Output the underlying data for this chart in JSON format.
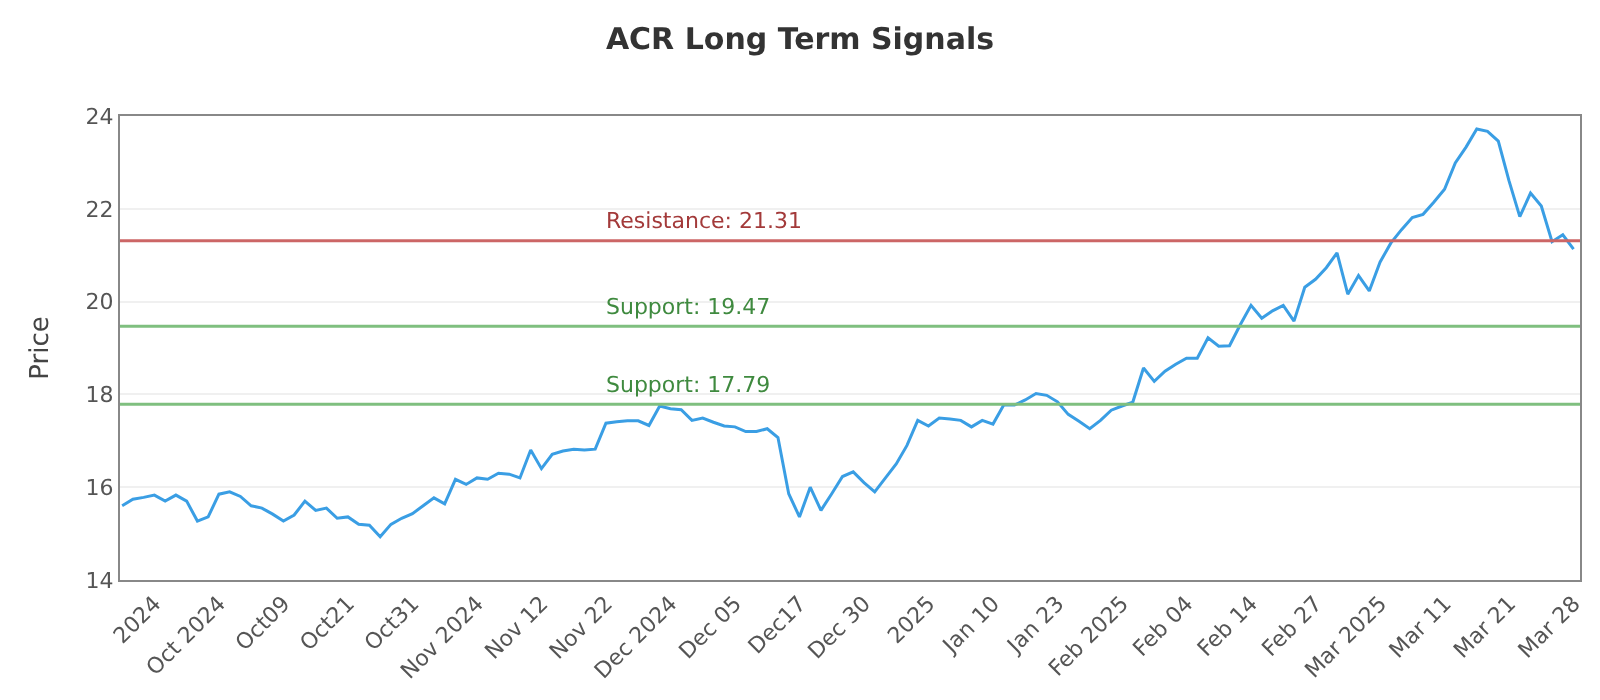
{
  "chart_data": {
    "type": "line",
    "title": "ACR Long Term Signals",
    "ylabel": "Price",
    "categories": [
      null,
      null,
      null,
      "2024",
      null,
      null,
      null,
      null,
      null,
      "Oct 2024",
      null,
      null,
      null,
      null,
      null,
      "Oct09",
      null,
      null,
      null,
      null,
      null,
      "Oct21",
      null,
      null,
      null,
      null,
      null,
      "Oct31",
      null,
      null,
      null,
      null,
      null,
      "Nov 2024",
      null,
      null,
      null,
      null,
      null,
      "Nov 12",
      null,
      null,
      null,
      null,
      null,
      "Nov 22",
      null,
      null,
      null,
      null,
      null,
      "Dec 2024",
      null,
      null,
      null,
      null,
      null,
      "Dec 05",
      null,
      null,
      null,
      null,
      null,
      "Dec17",
      null,
      null,
      null,
      null,
      null,
      "Dec 30",
      null,
      null,
      null,
      null,
      null,
      "2025",
      null,
      null,
      null,
      null,
      null,
      "Jan 10",
      null,
      null,
      null,
      null,
      null,
      "Jan 23",
      null,
      null,
      null,
      null,
      null,
      "Feb 2025",
      null,
      null,
      null,
      null,
      null,
      "Feb 04",
      null,
      null,
      null,
      null,
      null,
      "Feb 14",
      null,
      null,
      null,
      null,
      null,
      "Feb 27",
      null,
      null,
      null,
      null,
      null,
      "Mar 2025",
      null,
      null,
      null,
      null,
      null,
      "Mar 11",
      null,
      null,
      null,
      null,
      null,
      "Mar 21",
      null,
      null,
      null,
      null,
      null,
      "Mar 28"
    ],
    "series": [
      {
        "color": "#3a9ee4",
        "values": [
          15.6,
          15.74,
          15.78,
          15.83,
          15.7,
          15.83,
          15.7,
          15.27,
          15.36,
          15.85,
          15.9,
          15.8,
          15.6,
          15.55,
          15.42,
          15.27,
          15.4,
          15.7,
          15.5,
          15.55,
          15.33,
          15.36,
          15.2,
          15.18,
          14.93,
          15.2,
          15.33,
          15.43,
          15.6,
          15.77,
          15.64,
          16.17,
          16.06,
          16.2,
          16.17,
          16.3,
          16.28,
          16.2,
          16.8,
          16.4,
          16.71,
          16.78,
          16.82,
          16.8,
          16.82,
          17.38,
          17.41,
          17.43,
          17.43,
          17.33,
          17.75,
          17.69,
          17.67,
          17.44,
          17.49,
          17.4,
          17.32,
          17.3,
          17.2,
          17.2,
          17.26,
          17.07,
          15.86,
          15.36,
          16.0,
          15.5,
          15.86,
          16.23,
          16.33,
          16.1,
          15.9,
          16.2,
          16.5,
          16.9,
          17.44,
          17.32,
          17.49,
          17.47,
          17.44,
          17.3,
          17.44,
          17.36,
          17.77,
          17.77,
          17.88,
          18.02,
          17.98,
          17.84,
          17.57,
          17.42,
          17.26,
          17.44,
          17.66,
          17.75,
          17.83,
          18.57,
          18.28,
          18.5,
          18.65,
          18.78,
          18.78,
          19.22,
          19.04,
          19.05,
          19.5,
          19.92,
          19.64,
          19.8,
          19.92,
          19.58,
          20.31,
          20.48,
          20.73,
          21.05,
          20.16,
          20.56,
          20.23,
          20.85,
          21.26,
          21.55,
          21.81,
          21.88,
          22.14,
          22.42,
          22.99,
          23.33,
          23.72,
          23.67,
          23.46,
          22.6,
          21.83,
          22.34,
          22.06,
          21.29,
          21.44,
          21.13
        ]
      }
    ],
    "ylim": [
      14,
      24
    ],
    "yticks": [
      14,
      16,
      18,
      20,
      22,
      24
    ],
    "grid": "y",
    "marker": "none",
    "line_style": "solid",
    "ref_lines": [
      {
        "axis": "y",
        "value": 21.31,
        "label": "Resistance: 21.31",
        "color": "#cc6666"
      },
      {
        "axis": "y",
        "value": 19.47,
        "label": "Support: 19.47",
        "color": "#7fbf7f"
      },
      {
        "axis": "y",
        "value": 17.79,
        "label": "Support: 17.79",
        "color": "#7fbf7f"
      }
    ]
  }
}
